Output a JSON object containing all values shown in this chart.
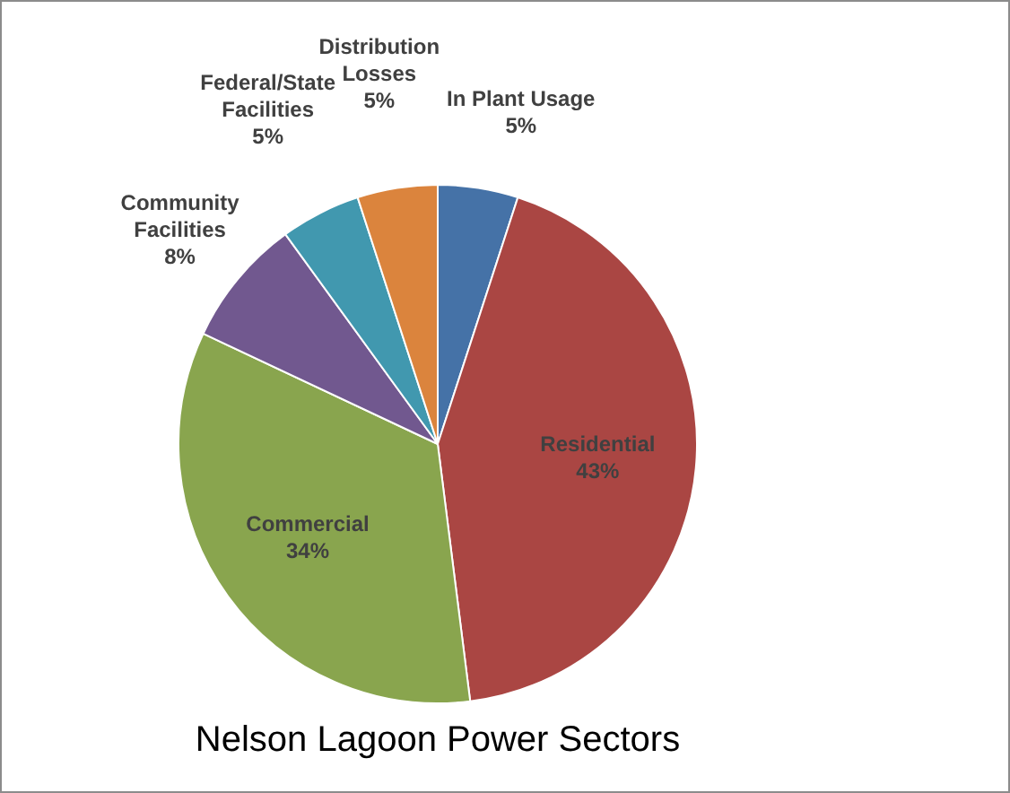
{
  "chart_data": {
    "type": "pie",
    "title": "Nelson Lagoon Power Sectors",
    "categories": [
      "In Plant Usage",
      "Residential",
      "Commercial",
      "Community Facilities",
      "Federal/State Facilities",
      "Distribution Losses"
    ],
    "values": [
      5,
      43,
      34,
      8,
      5,
      5
    ],
    "colors": [
      "#4572a7",
      "#aa4643",
      "#89a54e",
      "#71588f",
      "#4198af",
      "#db843d"
    ],
    "value_labels": [
      "5%",
      "43%",
      "34%",
      "8%",
      "5%",
      "5%"
    ],
    "legend": false
  }
}
